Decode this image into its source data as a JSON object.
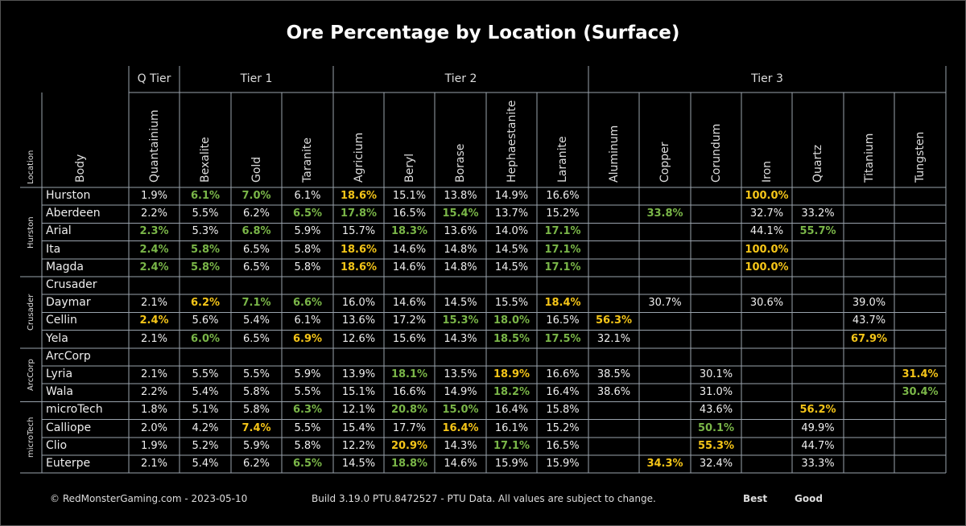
{
  "title": "Ore Percentage by Location (Surface)",
  "footer": {
    "copyright": "© RedMonsterGaming.com - 2023-05-10",
    "build": "Build 3.19.0 PTU.8472527 - PTU Data. All values are subject to change.",
    "legend_best": "Best",
    "legend_good": "Good"
  },
  "colors": {
    "best": "#f5c518",
    "good": "#7ab648",
    "grid": "#9aa3ad",
    "background": "#000000"
  },
  "header": {
    "location": "Location",
    "body": "Body"
  },
  "chart_data": {
    "type": "table",
    "tiers": [
      {
        "name": "Q Tier",
        "span": 1
      },
      {
        "name": "Tier 1",
        "span": 3
      },
      {
        "name": "Tier 2",
        "span": 5
      },
      {
        "name": "Tier 3",
        "span": 7
      }
    ],
    "columns": [
      "Quantainium",
      "Bexalite",
      "Gold",
      "Taranite",
      "Agricium",
      "Beryl",
      "Borase",
      "Hephaestanite",
      "Laranite",
      "Aluminum",
      "Copper",
      "Corundum",
      "Iron",
      "Quartz",
      "Titanium",
      "Tungsten"
    ],
    "groups": [
      {
        "location": "Hurston",
        "rows": [
          {
            "body": "Hurston",
            "values": [
              "1.9%",
              "6.1%",
              "7.0%",
              "6.1%",
              "18.6%",
              "15.1%",
              "13.8%",
              "14.9%",
              "16.6%",
              "",
              "",
              "",
              "100.0%",
              "",
              "",
              ""
            ],
            "marks": [
              "",
              "g",
              "g",
              "",
              "b",
              "",
              "",
              "",
              "",
              "",
              "",
              "",
              "b",
              "",
              "",
              ""
            ]
          },
          {
            "body": "Aberdeen",
            "values": [
              "2.2%",
              "5.5%",
              "6.2%",
              "6.5%",
              "17.8%",
              "16.5%",
              "15.4%",
              "13.7%",
              "15.2%",
              "",
              "33.8%",
              "",
              "32.7%",
              "33.2%",
              "",
              ""
            ],
            "marks": [
              "",
              "",
              "",
              "g",
              "g",
              "",
              "g",
              "",
              "",
              "",
              "g",
              "",
              "",
              "",
              "",
              ""
            ]
          },
          {
            "body": "Arial",
            "values": [
              "2.3%",
              "5.3%",
              "6.8%",
              "5.9%",
              "15.7%",
              "18.3%",
              "13.6%",
              "14.0%",
              "17.1%",
              "",
              "",
              "",
              "44.1%",
              "55.7%",
              "",
              ""
            ],
            "marks": [
              "g",
              "",
              "g",
              "",
              "",
              "g",
              "",
              "",
              "g",
              "",
              "",
              "",
              "",
              "g",
              "",
              ""
            ]
          },
          {
            "body": "Ita",
            "values": [
              "2.4%",
              "5.8%",
              "6.5%",
              "5.8%",
              "18.6%",
              "14.6%",
              "14.8%",
              "14.5%",
              "17.1%",
              "",
              "",
              "",
              "100.0%",
              "",
              "",
              ""
            ],
            "marks": [
              "g",
              "g",
              "",
              "",
              "b",
              "",
              "",
              "",
              "g",
              "",
              "",
              "",
              "b",
              "",
              "",
              ""
            ]
          },
          {
            "body": "Magda",
            "values": [
              "2.4%",
              "5.8%",
              "6.5%",
              "5.8%",
              "18.6%",
              "14.6%",
              "14.8%",
              "14.5%",
              "17.1%",
              "",
              "",
              "",
              "100.0%",
              "",
              "",
              ""
            ],
            "marks": [
              "g",
              "g",
              "",
              "",
              "b",
              "",
              "",
              "",
              "g",
              "",
              "",
              "",
              "b",
              "",
              "",
              ""
            ]
          }
        ]
      },
      {
        "location": "Crusader",
        "rows": [
          {
            "body": "Crusader",
            "values": [
              "",
              "",
              "",
              "",
              "",
              "",
              "",
              "",
              "",
              "",
              "",
              "",
              "",
              "",
              "",
              ""
            ],
            "marks": [
              "",
              "",
              "",
              "",
              "",
              "",
              "",
              "",
              "",
              "",
              "",
              "",
              "",
              "",
              "",
              ""
            ]
          },
          {
            "body": "Daymar",
            "values": [
              "2.1%",
              "6.2%",
              "7.1%",
              "6.6%",
              "16.0%",
              "14.6%",
              "14.5%",
              "15.5%",
              "18.4%",
              "",
              "30.7%",
              "",
              "30.6%",
              "",
              "39.0%",
              ""
            ],
            "marks": [
              "",
              "b",
              "g",
              "g",
              "",
              "",
              "",
              "",
              "b",
              "",
              "",
              "",
              "",
              "",
              "",
              ""
            ]
          },
          {
            "body": "Cellin",
            "values": [
              "2.4%",
              "5.6%",
              "5.4%",
              "6.1%",
              "13.6%",
              "17.2%",
              "15.3%",
              "18.0%",
              "16.5%",
              "56.3%",
              "",
              "",
              "",
              "",
              "43.7%",
              ""
            ],
            "marks": [
              "b",
              "",
              "",
              "",
              "",
              "",
              "g",
              "g",
              "",
              "b",
              "",
              "",
              "",
              "",
              "",
              ""
            ]
          },
          {
            "body": "Yela",
            "values": [
              "2.1%",
              "6.0%",
              "6.5%",
              "6.9%",
              "12.6%",
              "15.6%",
              "14.3%",
              "18.5%",
              "17.5%",
              "32.1%",
              "",
              "",
              "",
              "",
              "67.9%",
              ""
            ],
            "marks": [
              "",
              "g",
              "",
              "b",
              "",
              "",
              "",
              "g",
              "g",
              "",
              "",
              "",
              "",
              "",
              "b",
              ""
            ]
          }
        ]
      },
      {
        "location": "ArcCorp",
        "rows": [
          {
            "body": "ArcCorp",
            "values": [
              "",
              "",
              "",
              "",
              "",
              "",
              "",
              "",
              "",
              "",
              "",
              "",
              "",
              "",
              "",
              ""
            ],
            "marks": [
              "",
              "",
              "",
              "",
              "",
              "",
              "",
              "",
              "",
              "",
              "",
              "",
              "",
              "",
              "",
              ""
            ]
          },
          {
            "body": "Lyria",
            "values": [
              "2.1%",
              "5.5%",
              "5.5%",
              "5.9%",
              "13.9%",
              "18.1%",
              "13.5%",
              "18.9%",
              "16.6%",
              "38.5%",
              "",
              "30.1%",
              "",
              "",
              "",
              "31.4%"
            ],
            "marks": [
              "",
              "",
              "",
              "",
              "",
              "g",
              "",
              "b",
              "",
              "",
              "",
              "",
              "",
              "",
              "",
              "b"
            ]
          },
          {
            "body": "Wala",
            "values": [
              "2.2%",
              "5.4%",
              "5.8%",
              "5.5%",
              "15.1%",
              "16.6%",
              "14.9%",
              "18.2%",
              "16.4%",
              "38.6%",
              "",
              "31.0%",
              "",
              "",
              "",
              "30.4%"
            ],
            "marks": [
              "",
              "",
              "",
              "",
              "",
              "",
              "",
              "g",
              "",
              "",
              "",
              "",
              "",
              "",
              "",
              "g"
            ]
          }
        ]
      },
      {
        "location": "microTech",
        "rows": [
          {
            "body": "microTech",
            "values": [
              "1.8%",
              "5.1%",
              "5.8%",
              "6.3%",
              "12.1%",
              "20.8%",
              "15.0%",
              "16.4%",
              "15.8%",
              "",
              "",
              "43.6%",
              "",
              "56.2%",
              "",
              ""
            ],
            "marks": [
              "",
              "",
              "",
              "g",
              "",
              "g",
              "g",
              "",
              "",
              "",
              "",
              "",
              "",
              "b",
              "",
              ""
            ]
          },
          {
            "body": "Calliope",
            "values": [
              "2.0%",
              "4.2%",
              "7.4%",
              "5.5%",
              "15.4%",
              "17.7%",
              "16.4%",
              "16.1%",
              "15.2%",
              "",
              "",
              "50.1%",
              "",
              "49.9%",
              "",
              ""
            ],
            "marks": [
              "",
              "",
              "b",
              "",
              "",
              "",
              "b",
              "",
              "",
              "",
              "",
              "g",
              "",
              "",
              "",
              ""
            ]
          },
          {
            "body": "Clio",
            "values": [
              "1.9%",
              "5.2%",
              "5.9%",
              "5.8%",
              "12.2%",
              "20.9%",
              "14.3%",
              "17.1%",
              "16.5%",
              "",
              "",
              "55.3%",
              "",
              "44.7%",
              "",
              ""
            ],
            "marks": [
              "",
              "",
              "",
              "",
              "",
              "b",
              "",
              "g",
              "",
              "",
              "",
              "b",
              "",
              "",
              "",
              ""
            ]
          },
          {
            "body": "Euterpe",
            "values": [
              "2.1%",
              "5.4%",
              "6.2%",
              "6.5%",
              "14.5%",
              "18.8%",
              "14.6%",
              "15.9%",
              "15.9%",
              "",
              "34.3%",
              "32.4%",
              "",
              "33.3%",
              "",
              ""
            ],
            "marks": [
              "",
              "",
              "",
              "g",
              "",
              "g",
              "",
              "",
              "",
              "",
              "b",
              "",
              "",
              "",
              "",
              ""
            ]
          }
        ]
      }
    ]
  }
}
